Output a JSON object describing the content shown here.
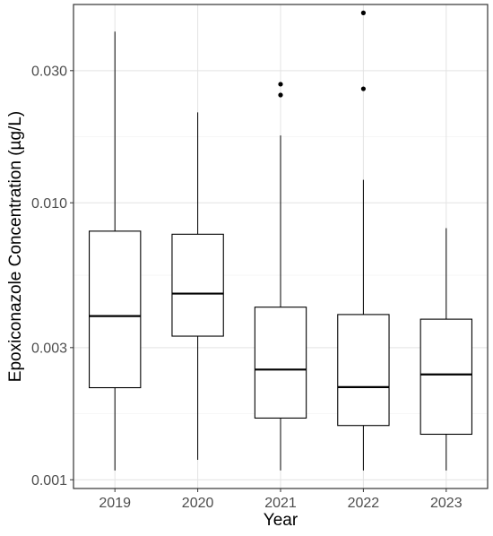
{
  "chart_data": {
    "type": "box",
    "title": "",
    "xlabel": "Year",
    "ylabel": "Epoxiconazole Concentration (µg/L)",
    "y_scale": "log10",
    "ylim": [
      0.00093,
      0.052
    ],
    "yticks": [
      0.001,
      0.003,
      0.01,
      0.03
    ],
    "ytick_labels": [
      "0.001",
      "0.003",
      "0.010",
      "0.030"
    ],
    "grid": true,
    "categories": [
      "2019",
      "2020",
      "2021",
      "2022",
      "2023"
    ],
    "boxes": [
      {
        "category": "2019",
        "whisker_low": 0.00108,
        "q1": 0.00215,
        "median": 0.0039,
        "q3": 0.0079,
        "whisker_high": 0.0415,
        "outliers": []
      },
      {
        "category": "2020",
        "whisker_low": 0.00118,
        "q1": 0.0033,
        "median": 0.0047,
        "q3": 0.0077,
        "whisker_high": 0.0212,
        "outliers": []
      },
      {
        "category": "2021",
        "whisker_low": 0.00108,
        "q1": 0.00167,
        "median": 0.0025,
        "q3": 0.0042,
        "whisker_high": 0.0175,
        "outliers": [
          0.0245,
          0.0268
        ]
      },
      {
        "category": "2022",
        "whisker_low": 0.00108,
        "q1": 0.00157,
        "median": 0.00216,
        "q3": 0.00395,
        "whisker_high": 0.0121,
        "outliers": [
          0.0258,
          0.0485
        ]
      },
      {
        "category": "2023",
        "whisker_low": 0.00108,
        "q1": 0.00146,
        "median": 0.0024,
        "q3": 0.0038,
        "whisker_high": 0.0081,
        "outliers": []
      }
    ]
  }
}
